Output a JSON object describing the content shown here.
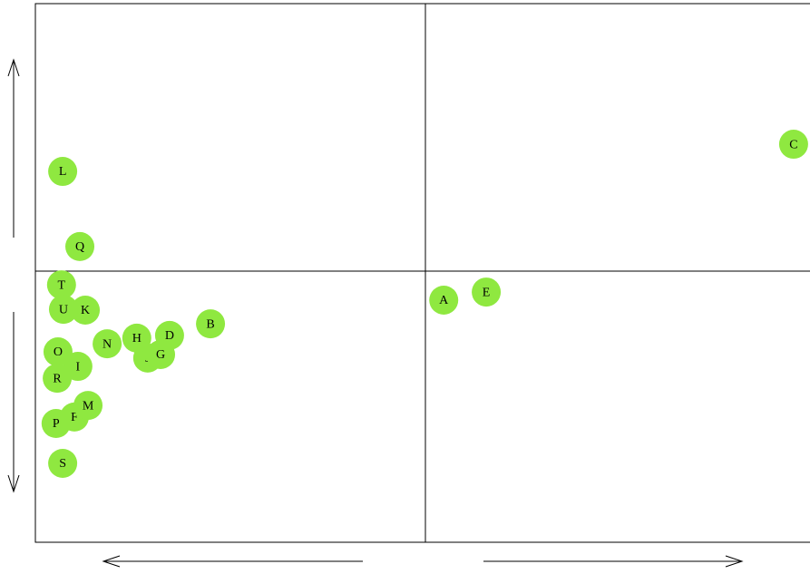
{
  "chart_data": {
    "type": "scatter",
    "labels": [
      "A",
      "B",
      "C",
      "D",
      "E",
      "F",
      "J",
      "G",
      "H",
      "I",
      "K",
      "L",
      "M",
      "N",
      "O",
      "P",
      "Q",
      "R",
      "S",
      "T",
      "U"
    ],
    "x": [
      0.047,
      -0.551,
      0.944,
      -0.656,
      0.156,
      -0.9,
      -0.712,
      -0.679,
      -0.74,
      -0.891,
      -0.872,
      -0.93,
      -0.865,
      -0.816,
      -0.942,
      -0.947,
      -0.886,
      -0.944,
      -0.93,
      -0.933,
      -0.928
    ],
    "y": [
      -0.101,
      -0.189,
      0.478,
      -0.232,
      -0.071,
      -0.535,
      -0.316,
      -0.303,
      -0.242,
      -0.347,
      -0.138,
      0.377,
      -0.492,
      -0.263,
      -0.293,
      -0.559,
      0.098,
      -0.391,
      -0.707,
      -0.044,
      -0.135
    ],
    "xlim": [
      -1,
      1
    ],
    "ylim": [
      -1,
      1
    ],
    "color": "#8fe840"
  }
}
